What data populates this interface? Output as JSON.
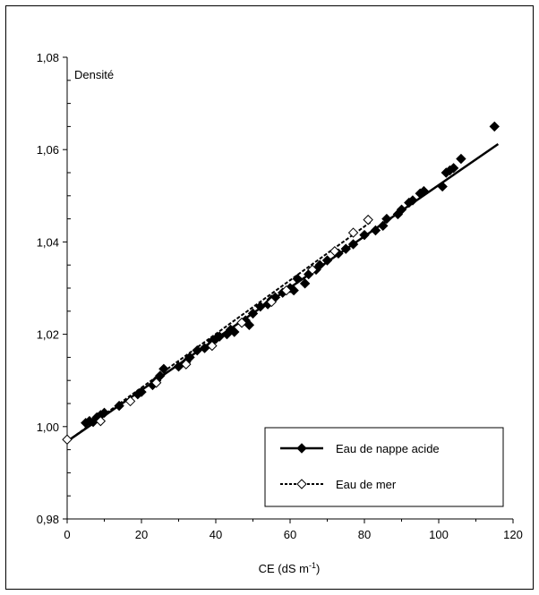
{
  "chart_data": {
    "type": "scatter",
    "ylabel": "Densité",
    "xlabel": {
      "base": "CE (dS m",
      "sup": "-1",
      "close": ")"
    },
    "xlim": [
      0,
      120
    ],
    "ylim": [
      0.98,
      1.08
    ],
    "x_ticks": [
      0,
      20,
      40,
      60,
      80,
      100,
      120
    ],
    "x_tick_labels": [
      "0",
      "20",
      "40",
      "60",
      "80",
      "100",
      "120"
    ],
    "y_ticks": [
      0.98,
      1.0,
      1.02,
      1.04,
      1.06,
      1.08
    ],
    "y_tick_labels": [
      "0,98",
      "1,00",
      "1,02",
      "1,04",
      "1,06",
      "1,08"
    ],
    "legend_position": "bottom-right",
    "series": [
      {
        "name": "Eau de nappe acide",
        "marker": "filled-diamond",
        "line_style": "solid",
        "fit": {
          "x0": 0,
          "y0": 0.9968,
          "x1": 116,
          "y1": 1.0612
        },
        "points": [
          [
            5,
            1.0008
          ],
          [
            6,
            1.0012
          ],
          [
            7,
            1.001
          ],
          [
            8,
            1.002
          ],
          [
            9,
            1.0025
          ],
          [
            10,
            1.003
          ],
          [
            14,
            1.0045
          ],
          [
            19,
            1.007
          ],
          [
            20,
            1.0075
          ],
          [
            23,
            1.009
          ],
          [
            24,
            1.01
          ],
          [
            25,
            1.011
          ],
          [
            26,
            1.0125
          ],
          [
            30,
            1.013
          ],
          [
            32,
            1.014
          ],
          [
            33,
            1.015
          ],
          [
            35,
            1.0165
          ],
          [
            37,
            1.017
          ],
          [
            39,
            1.0185
          ],
          [
            40,
            1.019
          ],
          [
            41,
            1.0195
          ],
          [
            43,
            1.02
          ],
          [
            44,
            1.021
          ],
          [
            45,
            1.0205
          ],
          [
            47,
            1.0225
          ],
          [
            48,
            1.023
          ],
          [
            49,
            1.022
          ],
          [
            50,
            1.0245
          ],
          [
            52,
            1.026
          ],
          [
            54,
            1.0265
          ],
          [
            55,
            1.0275
          ],
          [
            56,
            1.028
          ],
          [
            58,
            1.029
          ],
          [
            60,
            1.03
          ],
          [
            61,
            1.0295
          ],
          [
            62,
            1.032
          ],
          [
            64,
            1.031
          ],
          [
            65,
            1.033
          ],
          [
            67,
            1.034
          ],
          [
            68,
            1.035
          ],
          [
            70,
            1.036
          ],
          [
            73,
            1.0375
          ],
          [
            75,
            1.0385
          ],
          [
            77,
            1.0395
          ],
          [
            80,
            1.0415
          ],
          [
            83,
            1.0425
          ],
          [
            85,
            1.0435
          ],
          [
            86,
            1.045
          ],
          [
            89,
            1.046
          ],
          [
            90,
            1.047
          ],
          [
            92,
            1.0485
          ],
          [
            93,
            1.049
          ],
          [
            95,
            1.0505
          ],
          [
            96,
            1.051
          ],
          [
            101,
            1.052
          ],
          [
            102,
            1.055
          ],
          [
            103,
            1.0555
          ],
          [
            104,
            1.056
          ],
          [
            106,
            1.058
          ],
          [
            115,
            1.065
          ]
        ]
      },
      {
        "name": "Eau de mer",
        "marker": "open-diamond",
        "line_style": "dashed",
        "fit": {
          "x0": 0,
          "y0": 0.9968,
          "x1": 82,
          "y1": 1.0445
        },
        "points": [
          [
            0,
            0.9972
          ],
          [
            9,
            1.0012
          ],
          [
            17,
            1.0055
          ],
          [
            24,
            1.0095
          ],
          [
            32,
            1.0135
          ],
          [
            39,
            1.0175
          ],
          [
            47,
            1.0225
          ],
          [
            55,
            1.027
          ],
          [
            59,
            1.0295
          ],
          [
            66,
            1.034
          ],
          [
            72,
            1.038
          ],
          [
            77,
            1.042
          ],
          [
            81,
            1.0448
          ]
        ]
      }
    ]
  }
}
